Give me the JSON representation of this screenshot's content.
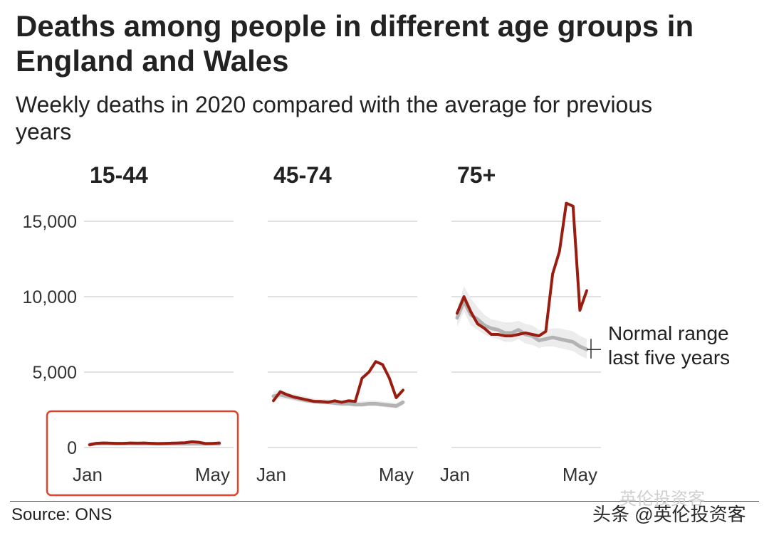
{
  "title": "Deaths among people in different age groups in England and Wales",
  "subtitle": "Weekly deaths in 2020 compared with the average for previous years",
  "source": "Source: ONS",
  "watermark": "头条 @英伦投资客",
  "watermark_faint": "英伦投资客",
  "colors": {
    "deaths_2020": "#9a1c10",
    "average": "#b3b3b3",
    "range_band": "#ececec",
    "gridline": "#cfcfcf",
    "highlight_box": "#e0452b"
  },
  "chart_data": {
    "type": "line",
    "y_tick_labels": [
      "15,000",
      "10,000",
      "5,000",
      "0"
    ],
    "y_ticks": [
      15000,
      10000,
      5000,
      0
    ],
    "ylim": [
      0,
      16500
    ],
    "x_tick_labels": [
      "Jan",
      "May"
    ],
    "x_ticks": [
      1,
      19
    ],
    "grid": true,
    "annotation": [
      "Normal range",
      "last five years"
    ],
    "highlighted_panel": "15-44",
    "panels": [
      {
        "label": "15-44",
        "x": [
          1,
          2,
          3,
          4,
          5,
          6,
          7,
          8,
          9,
          10,
          11,
          12,
          13,
          14,
          15,
          16,
          17,
          18,
          19,
          20
        ],
        "deaths_2020": [
          180,
          280,
          300,
          290,
          270,
          280,
          300,
          290,
          300,
          280,
          260,
          270,
          290,
          300,
          320,
          380,
          350,
          260,
          270,
          300
        ],
        "average": [
          200,
          260,
          270,
          260,
          260,
          260,
          260,
          255,
          255,
          255,
          250,
          250,
          250,
          250,
          250,
          250,
          245,
          245,
          245,
          245
        ],
        "range_low": [
          150,
          210,
          220,
          215,
          215,
          210,
          210,
          205,
          205,
          205,
          200,
          200,
          200,
          200,
          200,
          200,
          195,
          195,
          195,
          195
        ],
        "range_high": [
          260,
          320,
          330,
          320,
          315,
          315,
          315,
          310,
          310,
          310,
          305,
          305,
          305,
          305,
          305,
          305,
          300,
          300,
          300,
          300
        ]
      },
      {
        "label": "45-74",
        "x": [
          1,
          2,
          3,
          4,
          5,
          6,
          7,
          8,
          9,
          10,
          11,
          12,
          13,
          14,
          15,
          16,
          17,
          18,
          19,
          20
        ],
        "deaths_2020": [
          3100,
          3700,
          3500,
          3350,
          3250,
          3150,
          3050,
          3050,
          3000,
          3100,
          3000,
          3100,
          3050,
          4600,
          5000,
          5700,
          5500,
          4600,
          3300,
          3800
        ],
        "average": [
          3400,
          3500,
          3400,
          3300,
          3200,
          3100,
          3050,
          3000,
          3000,
          2950,
          2900,
          2900,
          2850,
          2850,
          2900,
          2900,
          2850,
          2800,
          2750,
          3000
        ],
        "range_low": [
          3100,
          3250,
          3200,
          3100,
          3000,
          2950,
          2900,
          2850,
          2850,
          2800,
          2750,
          2750,
          2700,
          2700,
          2750,
          2750,
          2700,
          2650,
          2600,
          2800
        ],
        "range_high": [
          3700,
          3850,
          3650,
          3550,
          3450,
          3350,
          3250,
          3200,
          3200,
          3150,
          3100,
          3100,
          3050,
          3050,
          3100,
          3100,
          3050,
          3000,
          2950,
          3200
        ]
      },
      {
        "label": "75+",
        "x": [
          1,
          2,
          3,
          4,
          5,
          6,
          7,
          8,
          9,
          10,
          11,
          12,
          13,
          14,
          15,
          16,
          17,
          18,
          19,
          20
        ],
        "deaths_2020": [
          8900,
          10000,
          9000,
          8200,
          7900,
          7500,
          7500,
          7400,
          7400,
          7500,
          7600,
          7500,
          7400,
          7700,
          11500,
          13000,
          16200,
          16000,
          9100,
          10400
        ],
        "average": [
          8600,
          9700,
          8800,
          8500,
          8100,
          7900,
          7800,
          7600,
          7600,
          7800,
          7500,
          7400,
          7100,
          7200,
          7300,
          7200,
          7100,
          7000,
          6700,
          6500
        ],
        "range_low": [
          8000,
          9000,
          8100,
          7800,
          7500,
          7300,
          7200,
          7000,
          7000,
          7200,
          6900,
          6800,
          6600,
          6700,
          6700,
          6600,
          6500,
          6400,
          6100,
          5900
        ],
        "range_high": [
          9200,
          10700,
          9900,
          9300,
          8800,
          8500,
          8400,
          8300,
          8300,
          8400,
          8200,
          8100,
          7800,
          7800,
          7900,
          7900,
          7800,
          7700,
          7400,
          7200
        ]
      }
    ]
  }
}
